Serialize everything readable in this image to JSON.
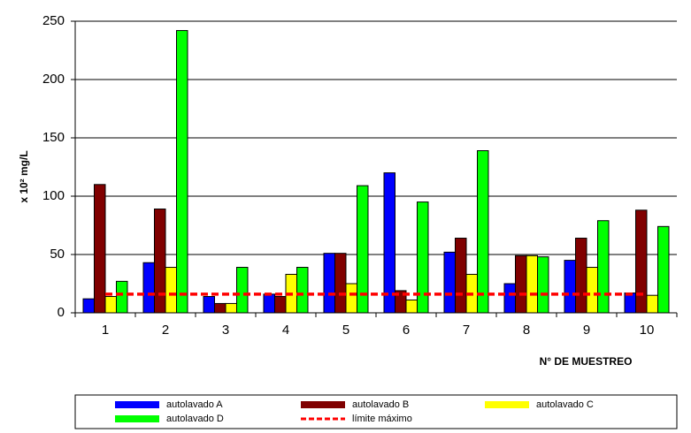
{
  "chart_data": {
    "type": "bar",
    "ylabel": "x 10² mg/L",
    "xlabel": "N° DE MUESTREO",
    "categories": [
      "1",
      "2",
      "3",
      "4",
      "5",
      "6",
      "7",
      "8",
      "9",
      "10"
    ],
    "series": [
      {
        "name": "autolavado A",
        "color": "#0000ff",
        "values": [
          12,
          43,
          14,
          16,
          51,
          120,
          52,
          25,
          45,
          17
        ]
      },
      {
        "name": "autolavado B",
        "color": "#800000",
        "values": [
          110,
          89,
          8,
          14,
          51,
          19,
          64,
          49,
          64,
          88
        ]
      },
      {
        "name": "autolavado C",
        "color": "#ffff00",
        "values": [
          14,
          39,
          8,
          33,
          25,
          11,
          33,
          49,
          39,
          15
        ]
      },
      {
        "name": "autolavado D",
        "color": "#00ff00",
        "values": [
          27,
          242,
          39,
          39,
          109,
          95,
          139,
          48,
          79,
          74
        ]
      },
      {
        "name": "límite máximo",
        "color": "#ff0000",
        "type": "line",
        "style": "dashed",
        "values": [
          16,
          16,
          16,
          16,
          16,
          16,
          16,
          16,
          16,
          16
        ]
      }
    ],
    "ylim": [
      0,
      250
    ],
    "yticks": [
      0,
      50,
      100,
      150,
      200,
      250
    ],
    "grid": true
  }
}
